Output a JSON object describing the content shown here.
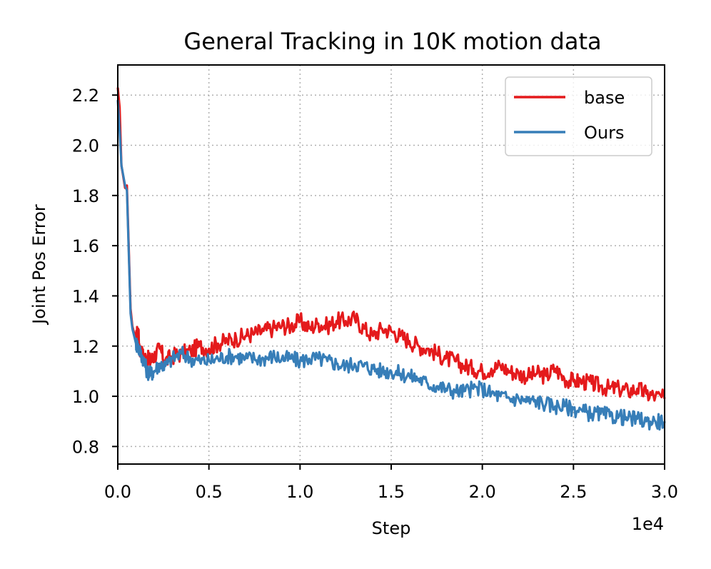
{
  "chart_data": {
    "type": "line",
    "title": "General Tracking in 10K motion data",
    "xlabel": "Step",
    "ylabel": "Joint Pos Error",
    "x_offset_label": "1e4",
    "xlim": [
      0,
      30000
    ],
    "ylim": [
      0.73,
      2.32
    ],
    "x_ticks": [
      0,
      5000,
      10000,
      15000,
      20000,
      25000,
      30000
    ],
    "x_tick_labels": [
      "0.0",
      "0.5",
      "1.0",
      "1.5",
      "2.0",
      "2.5",
      "3.0"
    ],
    "y_ticks": [
      0.8,
      1.0,
      1.2,
      1.4,
      1.6,
      1.8,
      2.0,
      2.2
    ],
    "y_tick_labels": [
      "0.8",
      "1.0",
      "1.2",
      "1.4",
      "1.6",
      "1.8",
      "2.0",
      "2.2"
    ],
    "grid": true,
    "legend_position": "top-right",
    "x": [
      0,
      100,
      200,
      400,
      500,
      600,
      700,
      800,
      1000,
      1100,
      1200,
      1400,
      1600,
      1800,
      2000,
      2300,
      2600,
      3000,
      3500,
      4000,
      4500,
      5000,
      5500,
      6000,
      6500,
      7000,
      7500,
      8000,
      8500,
      9000,
      9500,
      10000,
      10500,
      11000,
      11500,
      12000,
      12500,
      13000,
      13500,
      14000,
      14500,
      15000,
      15500,
      16000,
      16500,
      17000,
      17500,
      18000,
      18500,
      19000,
      19500,
      20000,
      20500,
      21000,
      21500,
      22000,
      22500,
      23000,
      23500,
      24000,
      24500,
      25000,
      25500,
      26000,
      26500,
      27000,
      27500,
      28000,
      28500,
      29000,
      29500,
      30000
    ],
    "series": [
      {
        "name": "base",
        "color": "#e41a1c",
        "values": [
          2.23,
          2.15,
          1.92,
          1.83,
          1.84,
          1.6,
          1.35,
          1.28,
          1.22,
          1.27,
          1.19,
          1.16,
          1.15,
          1.14,
          1.16,
          1.19,
          1.14,
          1.16,
          1.17,
          1.18,
          1.2,
          1.19,
          1.21,
          1.22,
          1.23,
          1.24,
          1.25,
          1.26,
          1.27,
          1.28,
          1.28,
          1.3,
          1.27,
          1.29,
          1.28,
          1.3,
          1.3,
          1.31,
          1.27,
          1.24,
          1.27,
          1.26,
          1.24,
          1.22,
          1.2,
          1.19,
          1.17,
          1.15,
          1.14,
          1.12,
          1.11,
          1.1,
          1.11,
          1.12,
          1.1,
          1.09,
          1.08,
          1.09,
          1.08,
          1.11,
          1.07,
          1.06,
          1.06,
          1.05,
          1.04,
          1.03,
          1.03,
          1.02,
          1.03,
          1.01,
          1.0,
          0.99
        ]
      },
      {
        "name": "Ours",
        "color": "#377eb8",
        "values": [
          2.18,
          2.06,
          1.92,
          1.84,
          1.82,
          1.58,
          1.33,
          1.27,
          1.21,
          1.2,
          1.18,
          1.15,
          1.1,
          1.09,
          1.1,
          1.13,
          1.12,
          1.15,
          1.17,
          1.15,
          1.14,
          1.14,
          1.15,
          1.16,
          1.16,
          1.15,
          1.15,
          1.15,
          1.16,
          1.15,
          1.15,
          1.14,
          1.15,
          1.15,
          1.14,
          1.13,
          1.12,
          1.13,
          1.12,
          1.11,
          1.1,
          1.1,
          1.09,
          1.08,
          1.07,
          1.05,
          1.04,
          1.03,
          1.02,
          1.02,
          1.03,
          1.03,
          1.01,
          1.0,
          0.99,
          0.99,
          0.98,
          0.98,
          0.97,
          0.96,
          0.96,
          0.95,
          0.94,
          0.93,
          0.93,
          0.92,
          0.92,
          0.91,
          0.91,
          0.9,
          0.9,
          0.9
        ]
      }
    ]
  }
}
